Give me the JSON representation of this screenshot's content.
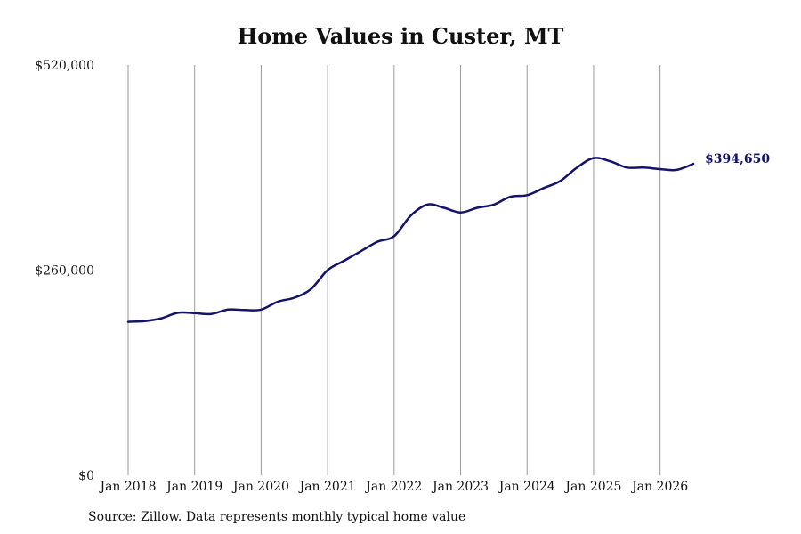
{
  "chart_data": {
    "type": "line",
    "title": "Home Values in Custer, MT",
    "source": "Source: Zillow. Data represents monthly typical home value",
    "xlabel": "",
    "ylabel": "",
    "ylim": [
      0,
      520000
    ],
    "y_ticks": [
      {
        "value": 0,
        "label": "$0"
      },
      {
        "value": 260000,
        "label": "$260,000"
      },
      {
        "value": 520000,
        "label": "$520,000"
      }
    ],
    "x_ticks": [
      {
        "value": "2018-01",
        "label": "Jan 2018"
      },
      {
        "value": "2019-01",
        "label": "Jan 2019"
      },
      {
        "value": "2020-01",
        "label": "Jan 2020"
      },
      {
        "value": "2021-01",
        "label": "Jan 2021"
      },
      {
        "value": "2022-01",
        "label": "Jan 2022"
      },
      {
        "value": "2023-01",
        "label": "Jan 2023"
      },
      {
        "value": "2024-01",
        "label": "Jan 2024"
      },
      {
        "value": "2025-01",
        "label": "Jan 2025"
      },
      {
        "value": "2026-01",
        "label": "Jan 2026"
      }
    ],
    "xlim": [
      "2018-01",
      "2026-07"
    ],
    "grid": "vertical",
    "line_color": "#13136b",
    "end_label": "$394,650",
    "series": [
      {
        "x": [
          "2018-01",
          "2018-04",
          "2018-07",
          "2018-10",
          "2019-01",
          "2019-04",
          "2019-07",
          "2019-10",
          "2020-01",
          "2020-04",
          "2020-07",
          "2020-10",
          "2021-01",
          "2021-04",
          "2021-07",
          "2021-10",
          "2022-01",
          "2022-04",
          "2022-07",
          "2022-10",
          "2023-01",
          "2023-04",
          "2023-07",
          "2023-10",
          "2024-01",
          "2024-04",
          "2024-07",
          "2024-10",
          "2025-01",
          "2025-04",
          "2025-07",
          "2025-10",
          "2026-01",
          "2026-04",
          "2026-07"
        ],
        "values": [
          194500,
          195500,
          199000,
          206000,
          205500,
          204500,
          210000,
          209500,
          210000,
          220000,
          225000,
          236000,
          260000,
          272000,
          284000,
          296000,
          303000,
          329000,
          343000,
          339000,
          333000,
          339000,
          343000,
          353000,
          355000,
          364000,
          373000,
          390000,
          402000,
          398000,
          390000,
          390000,
          388000,
          387000,
          394650
        ]
      }
    ]
  }
}
